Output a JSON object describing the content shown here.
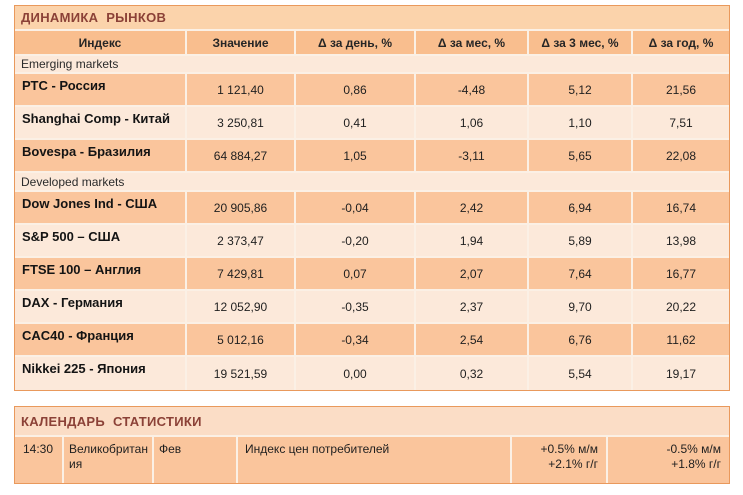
{
  "market_dynamics": {
    "title": "ДИНАМИКА РЫНКОВ",
    "columns": {
      "index": "Индекс",
      "value": "Значение",
      "d_day": "Δ за день, %",
      "d_month": "Δ за мес, %",
      "d_3mon": "Δ за 3 мес, %",
      "d_year": "Δ за год, %"
    },
    "sections": [
      {
        "label": "Emerging markets",
        "rows": [
          {
            "index": "РТС - Россия",
            "value": "1 121,40",
            "d_day": "0,86",
            "d_month": "-4,48",
            "d_3mon": "5,12",
            "d_year": "21,56"
          },
          {
            "index": "Shanghai Comp - Китай",
            "value": "3 250,81",
            "d_day": "0,41",
            "d_month": "1,06",
            "d_3mon": "1,10",
            "d_year": "7,51"
          },
          {
            "index": "Bovespa - Бразилия",
            "value": "64 884,27",
            "d_day": "1,05",
            "d_month": "-3,11",
            "d_3mon": "5,65",
            "d_year": "22,08"
          }
        ]
      },
      {
        "label": "Developed markets",
        "rows": [
          {
            "index": "Dow Jones Ind - США",
            "value": "20 905,86",
            "d_day": "-0,04",
            "d_month": "2,42",
            "d_3mon": "6,94",
            "d_year": "16,74"
          },
          {
            "index": "S&P 500 – США",
            "value": "2 373,47",
            "d_day": "-0,20",
            "d_month": "1,94",
            "d_3mon": "5,89",
            "d_year": "13,98"
          },
          {
            "index": "FTSE 100 – Англия",
            "value": "7 429,81",
            "d_day": "0,07",
            "d_month": "2,07",
            "d_3mon": "7,64",
            "d_year": "16,77"
          },
          {
            "index": "DAX - Германия",
            "value": "12 052,90",
            "d_day": "-0,35",
            "d_month": "2,37",
            "d_3mon": "9,70",
            "d_year": "20,22"
          },
          {
            "index": "CAC40 - Франция",
            "value": "5 012,16",
            "d_day": "-0,34",
            "d_month": "2,54",
            "d_3mon": "6,76",
            "d_year": "11,62"
          },
          {
            "index": "Nikkei 225 - Япония",
            "value": "19 521,59",
            "d_day": "0,00",
            "d_month": "0,32",
            "d_3mon": "5,54",
            "d_year": "19,17"
          }
        ]
      }
    ]
  },
  "calendar": {
    "title": "КАЛЕНДАРЬ СТАТИСТИКИ",
    "events": [
      {
        "time": "14:30",
        "country": "Великобритания",
        "period": "Фев",
        "event": "Индекс цен потребителей",
        "forecast": [
          "+0.5% м/м",
          "+2.1% г/г"
        ],
        "previous": [
          "-0.5% м/м",
          "+1.8% г/г"
        ]
      }
    ]
  },
  "colors": {
    "accent_border": "#E9995C",
    "title_bg": "#FBD3AB",
    "title_text": "#8B4137",
    "header_bg": "#F9BE8E",
    "row_dark_bg": "#FAC59C",
    "row_light_bg": "#FCE9DA",
    "calendar_header_bg": "#FBDDC6",
    "grid_line": "#FBF0E5"
  }
}
